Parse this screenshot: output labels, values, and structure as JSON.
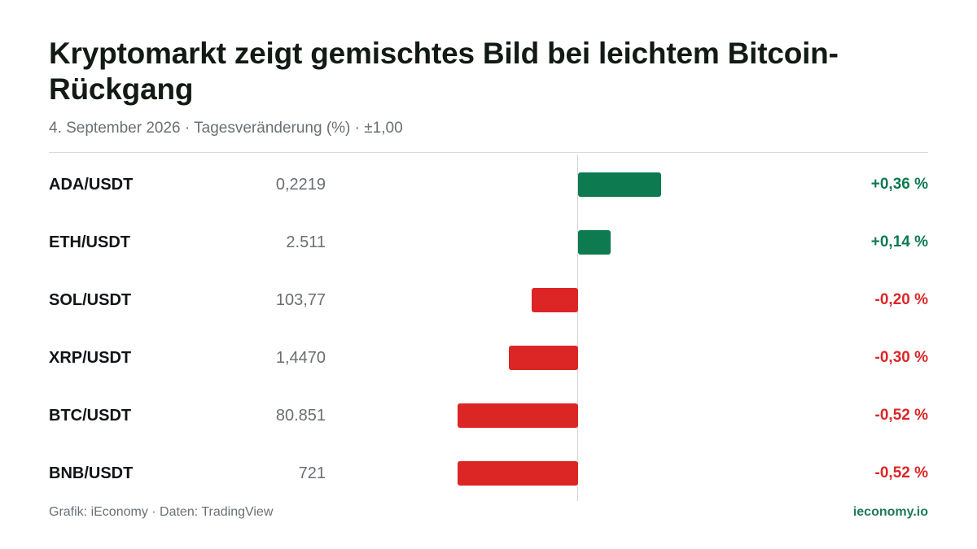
{
  "title": "Kryptomarkt zeigt gemischtes Bild bei leichtem Bitcoin-Rückgang",
  "subtitle": "4. September 2026 · Tagesveränderung (%) · ±1,00",
  "footer": {
    "source": "Grafik: iEconomy · Daten: TradingView",
    "brand": "ieconomy.io"
  },
  "colors": {
    "positive": "#0d7a50",
    "negative": "#dc2626",
    "brand": "#1f7a58"
  },
  "chart_data": {
    "type": "bar",
    "orientation": "horizontal",
    "title": "Kryptomarkt zeigt gemischtes Bild bei leichtem Bitcoin-Rückgang",
    "subtitle": "4. September 2026 · Tagesveränderung (%) · ±1,00",
    "xlim": [
      -1.0,
      1.0
    ],
    "grid": false,
    "rows": [
      {
        "pair": "ADA/USDT",
        "price": "0,2219",
        "value": 0.36,
        "label": "+0,36 %"
      },
      {
        "pair": "ETH/USDT",
        "price": "2.511",
        "value": 0.14,
        "label": "+0,14 %"
      },
      {
        "pair": "SOL/USDT",
        "price": "103,77",
        "value": -0.2,
        "label": "-0,20 %"
      },
      {
        "pair": "XRP/USDT",
        "price": "1,4470",
        "value": -0.3,
        "label": "-0,30 %"
      },
      {
        "pair": "BTC/USDT",
        "price": "80.851",
        "value": -0.52,
        "label": "-0,52 %"
      },
      {
        "pair": "BNB/USDT",
        "price": "721",
        "value": -0.52,
        "label": "-0,52 %"
      }
    ]
  }
}
